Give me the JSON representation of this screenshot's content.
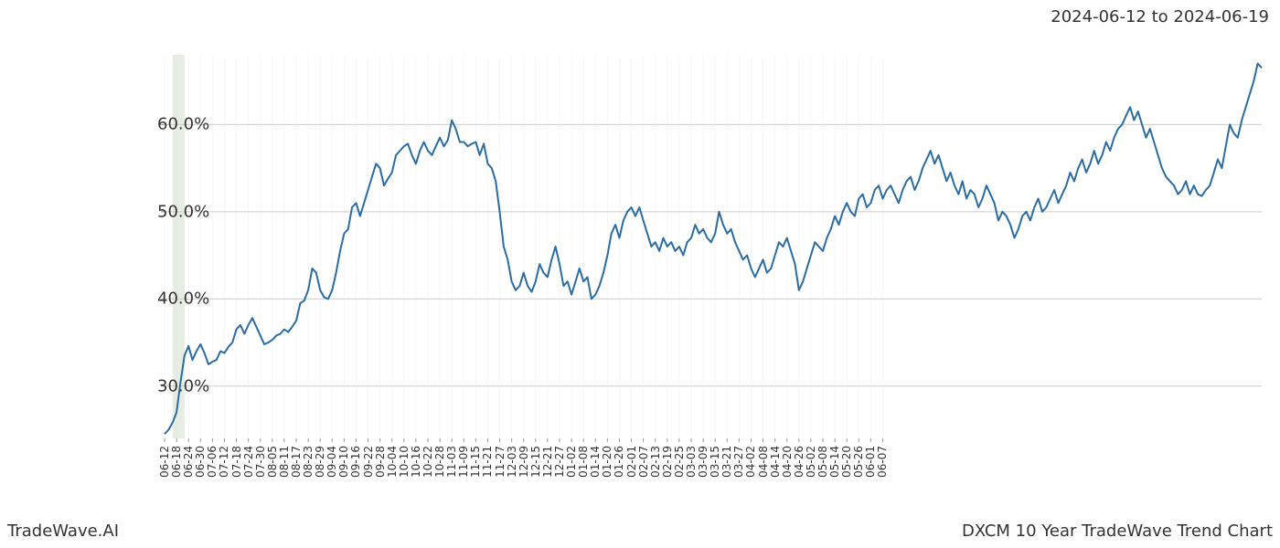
{
  "header": {
    "date_range": "2024-06-12 to 2024-06-19"
  },
  "footer": {
    "left": "TradeWave.AI",
    "right": "DXCM 10 Year TradeWave Trend Chart"
  },
  "chart": {
    "type": "line",
    "background_color": "#ffffff",
    "line_color": "#2b6ca3",
    "line_width": 2,
    "highlight_band": {
      "start_index": 2,
      "end_index": 5,
      "fill": "#dbe6d6",
      "opacity": 0.7
    },
    "grid": {
      "minor_color": "#dddddd",
      "major_color": "#cccccc"
    },
    "yaxis": {
      "min": 24,
      "max": 68,
      "ticks": [
        30,
        40,
        50,
        60
      ],
      "labels": [
        "30.0%",
        "40.0%",
        "50.0%",
        "60.0%"
      ],
      "label_fontsize": 18
    },
    "xaxis": {
      "tick_every": 3,
      "labels": [
        "06-12",
        "06-18",
        "06-24",
        "06-30",
        "07-06",
        "07-12",
        "07-18",
        "07-24",
        "07-30",
        "08-05",
        "08-11",
        "08-17",
        "08-23",
        "08-29",
        "09-04",
        "09-10",
        "09-16",
        "09-22",
        "09-28",
        "10-04",
        "10-10",
        "10-16",
        "10-22",
        "10-28",
        "11-03",
        "11-09",
        "11-15",
        "11-21",
        "11-27",
        "12-03",
        "12-09",
        "12-15",
        "12-21",
        "12-27",
        "01-02",
        "01-08",
        "01-14",
        "01-20",
        "01-26",
        "02-01",
        "02-07",
        "02-13",
        "02-19",
        "02-25",
        "03-03",
        "03-09",
        "03-15",
        "03-21",
        "03-27",
        "04-02",
        "04-08",
        "04-14",
        "04-20",
        "04-26",
        "05-02",
        "05-08",
        "05-14",
        "05-20",
        "05-26",
        "06-01",
        "06-07"
      ],
      "label_fontsize": 12,
      "rotation": -90
    },
    "series": {
      "values": [
        24.5,
        25.0,
        25.8,
        27.0,
        30.5,
        33.5,
        34.6,
        33.0,
        34.0,
        34.8,
        33.8,
        32.5,
        32.8,
        33.0,
        34.0,
        33.8,
        34.5,
        35.0,
        36.5,
        37.0,
        36.0,
        37.0,
        37.8,
        36.8,
        35.8,
        34.8,
        35.0,
        35.3,
        35.8,
        36.0,
        36.5,
        36.2,
        36.8,
        37.5,
        39.5,
        39.8,
        41.0,
        43.5,
        43.0,
        41.0,
        40.2,
        40.0,
        41.0,
        43.0,
        45.5,
        47.5,
        48.0,
        50.5,
        51.0,
        49.5,
        51.0,
        52.5,
        54.0,
        55.5,
        55.0,
        53.0,
        53.8,
        54.5,
        56.5,
        57.0,
        57.5,
        57.8,
        56.5,
        55.5,
        57.0,
        58.0,
        57.0,
        56.5,
        57.5,
        58.5,
        57.5,
        58.2,
        60.5,
        59.5,
        58.0,
        58.0,
        57.5,
        57.8,
        58.0,
        56.5,
        57.8,
        55.5,
        55.0,
        53.5,
        50.0,
        46.0,
        44.5,
        42.0,
        41.0,
        41.5,
        43.0,
        41.5,
        40.8,
        42.0,
        44.0,
        43.0,
        42.5,
        44.5,
        46.0,
        44.0,
        41.5,
        42.0,
        40.5,
        42.0,
        43.5,
        42.0,
        42.5,
        40.0,
        40.5,
        41.5,
        43.0,
        45.0,
        47.5,
        48.5,
        47.0,
        49.0,
        50.0,
        50.5,
        49.5,
        50.5,
        49.0,
        47.5,
        46.0,
        46.5,
        45.5,
        47.0,
        46.0,
        46.5,
        45.5,
        46.0,
        45.0,
        46.5,
        47.0,
        48.5,
        47.5,
        48.0,
        47.0,
        46.5,
        47.5,
        50.0,
        48.5,
        47.5,
        48.0,
        46.5,
        45.5,
        44.5,
        45.0,
        43.5,
        42.5,
        43.5,
        44.5,
        43.0,
        43.5,
        45.0,
        46.5,
        46.0,
        47.0,
        45.5,
        44.0,
        41.0,
        42.0,
        43.5,
        45.0,
        46.5,
        46.0,
        45.5,
        47.0,
        48.0,
        49.5,
        48.5,
        50.0,
        51.0,
        50.0,
        49.5,
        51.5,
        52.0,
        50.5,
        51.0,
        52.5,
        53.0,
        51.5,
        52.5,
        53.0,
        52.0,
        51.0,
        52.5,
        53.5,
        54.0,
        52.5,
        53.5,
        55.0,
        56.0,
        57.0,
        55.5,
        56.5,
        55.0,
        53.5,
        54.5,
        53.0,
        52.0,
        53.5,
        51.5,
        52.5,
        52.0,
        50.5,
        51.5,
        53.0,
        52.0,
        51.0,
        49.0,
        50.0,
        49.5,
        48.5,
        47.0,
        48.0,
        49.5,
        50.0,
        49.0,
        50.5,
        51.5,
        50.0,
        50.5,
        51.5,
        52.5,
        51.0,
        52.0,
        53.0,
        54.5,
        53.5,
        55.0,
        56.0,
        54.5,
        55.5,
        57.0,
        55.5,
        56.5,
        58.0,
        57.0,
        58.5,
        59.5,
        60.0,
        61.0,
        62.0,
        60.5,
        61.5,
        60.0,
        58.5,
        59.5,
        58.0,
        56.5,
        55.0,
        54.0,
        53.5,
        53.0,
        52.0,
        52.5,
        53.5,
        52.0,
        53.0,
        52.0,
        51.8,
        52.5,
        53.0,
        54.5,
        56.0,
        55.0,
        57.5,
        60.0,
        59.0,
        58.5,
        60.5,
        62.0,
        63.5,
        65.0,
        67.0,
        66.5
      ]
    }
  }
}
